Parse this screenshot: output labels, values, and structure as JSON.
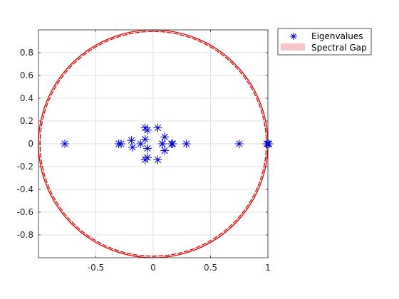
{
  "chart_data": {
    "type": "scatter",
    "title": "",
    "xlabel": "",
    "ylabel": "",
    "xlim": [
      -1,
      1
    ],
    "ylim": [
      -1,
      1
    ],
    "grid": true,
    "legend_location": "outside-top-right",
    "x_ticks": [
      -0.5,
      0,
      0.5,
      1
    ],
    "x_tick_labels": [
      "-0.5",
      "0",
      "0.5",
      "1"
    ],
    "y_ticks": [
      0.8,
      0.6,
      0.4,
      0.2,
      0,
      -0.2,
      -0.4,
      -0.6,
      -0.8
    ],
    "y_tick_labels": [
      "0.8",
      "0.6",
      "0.4",
      "0.2",
      "0",
      "-0.2",
      "-0.4",
      "-0.6",
      "-0.8"
    ],
    "series": [
      {
        "name": "Eigenvalues",
        "marker": "asterisk",
        "color": "#0000cc",
        "x": [
          -0.77,
          -0.3,
          -0.28,
          -0.19,
          -0.18,
          -0.11,
          -0.07,
          -0.05,
          -0.07,
          -0.05,
          -0.07,
          -0.05,
          0.04,
          0.04,
          0.08,
          0.08,
          0.1,
          0.1,
          0.16,
          0.17,
          0.29,
          0.75,
          0.99,
          1.0,
          1.01
        ],
        "y": [
          0.0,
          0.0,
          0.0,
          0.03,
          -0.03,
          0.0,
          0.14,
          0.12,
          -0.14,
          -0.12,
          0.04,
          -0.04,
          0.14,
          -0.14,
          0.0,
          0.0,
          0.06,
          -0.06,
          0.0,
          0.0,
          0.0,
          0.0,
          0.0,
          0.0,
          0.0
        ]
      },
      {
        "name": "Spectral Gap",
        "type": "circle",
        "color": "#dd0000",
        "legend_color": "#f7c6c6",
        "center": [
          0,
          0
        ],
        "radius": 1.0
      }
    ]
  }
}
